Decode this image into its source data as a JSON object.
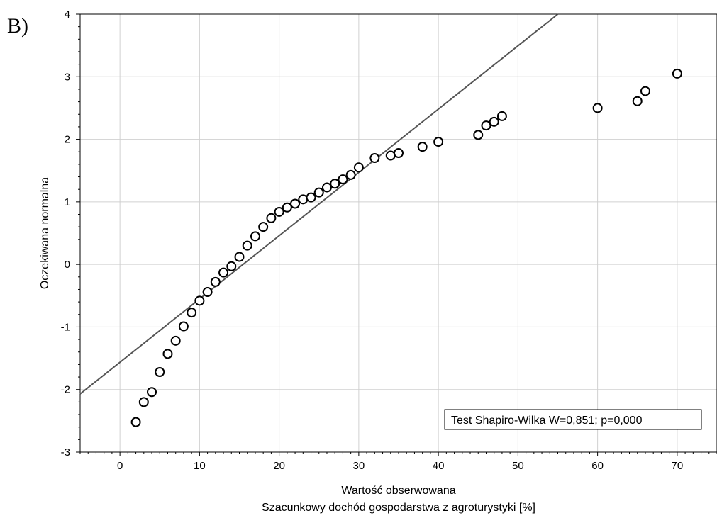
{
  "panel_label": "B)",
  "chart_data": {
    "type": "scatter",
    "title": "",
    "xlabel": "Wartość obserwowana",
    "xlabel2": "Szacunkowy dochód gospodarstwa z agroturystyki [%]",
    "ylabel": "Oczekiwana normalna",
    "xlim": [
      -5,
      75
    ],
    "ylim": [
      -3,
      4
    ],
    "xticks": [
      0,
      10,
      20,
      30,
      40,
      50,
      60,
      70
    ],
    "yticks": [
      -3,
      -2,
      -1,
      0,
      1,
      2,
      3,
      4
    ],
    "ytick_labels": [
      "-3",
      "-2",
      "-1",
      "0",
      "1",
      "2",
      "3",
      "4"
    ],
    "grid": true,
    "annotation": "Test Shapiro-Wilka W=0,851; p=0,000",
    "reference_line": {
      "x": [
        -5,
        55
      ],
      "y": [
        -2.07,
        4.0
      ]
    },
    "points": [
      {
        "x": 2,
        "y": -2.52
      },
      {
        "x": 3,
        "y": -2.2
      },
      {
        "x": 4,
        "y": -2.04
      },
      {
        "x": 5,
        "y": -1.72
      },
      {
        "x": 6,
        "y": -1.43
      },
      {
        "x": 7,
        "y": -1.22
      },
      {
        "x": 8,
        "y": -0.99
      },
      {
        "x": 9,
        "y": -0.77
      },
      {
        "x": 10,
        "y": -0.58
      },
      {
        "x": 11,
        "y": -0.44
      },
      {
        "x": 12,
        "y": -0.28
      },
      {
        "x": 13,
        "y": -0.13
      },
      {
        "x": 14,
        "y": -0.03
      },
      {
        "x": 15,
        "y": 0.12
      },
      {
        "x": 16,
        "y": 0.3
      },
      {
        "x": 17,
        "y": 0.45
      },
      {
        "x": 18,
        "y": 0.6
      },
      {
        "x": 19,
        "y": 0.74
      },
      {
        "x": 20,
        "y": 0.84
      },
      {
        "x": 21,
        "y": 0.91
      },
      {
        "x": 22,
        "y": 0.97
      },
      {
        "x": 23,
        "y": 1.04
      },
      {
        "x": 24,
        "y": 1.07
      },
      {
        "x": 25,
        "y": 1.15
      },
      {
        "x": 26,
        "y": 1.23
      },
      {
        "x": 27,
        "y": 1.29
      },
      {
        "x": 28,
        "y": 1.36
      },
      {
        "x": 29,
        "y": 1.43
      },
      {
        "x": 30,
        "y": 1.55
      },
      {
        "x": 32,
        "y": 1.7
      },
      {
        "x": 34,
        "y": 1.74
      },
      {
        "x": 35,
        "y": 1.78
      },
      {
        "x": 38,
        "y": 1.88
      },
      {
        "x": 40,
        "y": 1.96
      },
      {
        "x": 45,
        "y": 2.07
      },
      {
        "x": 46,
        "y": 2.22
      },
      {
        "x": 47,
        "y": 2.28
      },
      {
        "x": 48,
        "y": 2.37
      },
      {
        "x": 60,
        "y": 2.5
      },
      {
        "x": 65,
        "y": 2.61
      },
      {
        "x": 66,
        "y": 2.77
      },
      {
        "x": 70,
        "y": 3.05
      }
    ]
  }
}
